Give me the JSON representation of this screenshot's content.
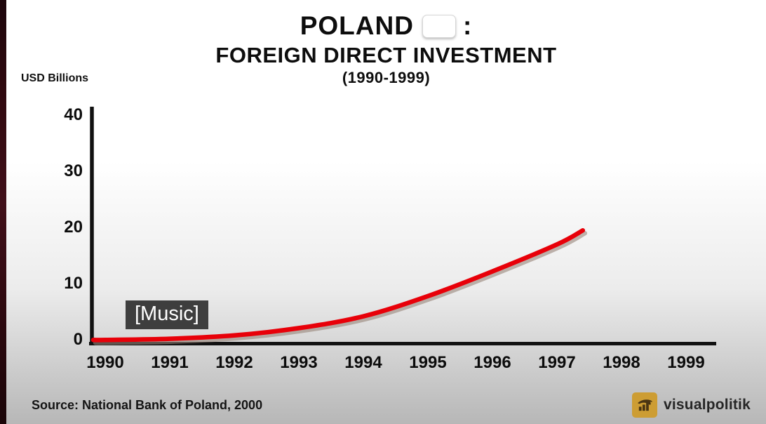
{
  "overlay": {
    "caption": "[Music]"
  },
  "header": {
    "country": "POLAND",
    "colon": ":",
    "flag": "flag-of-poland",
    "subtitle": "FOREIGN DIRECT INVESTMENT",
    "period": "(1990-1999)"
  },
  "chart_data": {
    "type": "line",
    "title": "POLAND: FOREIGN DIRECT INVESTMENT (1990-1999)",
    "xlabel": "",
    "ylabel": "USD Billions",
    "series": [
      {
        "name": "Foreign Direct Investment",
        "x": [
          1990,
          1991,
          1992,
          1993,
          1994,
          1995,
          1996,
          1997,
          1997.4
        ],
        "values": [
          0.1,
          0.3,
          0.9,
          2.2,
          4.3,
          7.9,
          12.3,
          17.1,
          19.6
        ]
      }
    ],
    "x_ticks": [
      "1990",
      "1991",
      "1992",
      "1993",
      "1994",
      "1995",
      "1996",
      "1997",
      "1998",
      "1999"
    ],
    "y_ticks": [
      0,
      10,
      20,
      30,
      40
    ],
    "xlim": [
      1990,
      1999
    ],
    "ylim": [
      0,
      40
    ],
    "grid": false,
    "legend": false,
    "line_color": "#e80009",
    "line_shadow_color": "#97857a",
    "axis_color": "#111111"
  },
  "footer": {
    "source": "Source: National Bank of Poland, 2000",
    "brand": "visualpolitik",
    "brand_icon_bg": "#cd9d33"
  }
}
